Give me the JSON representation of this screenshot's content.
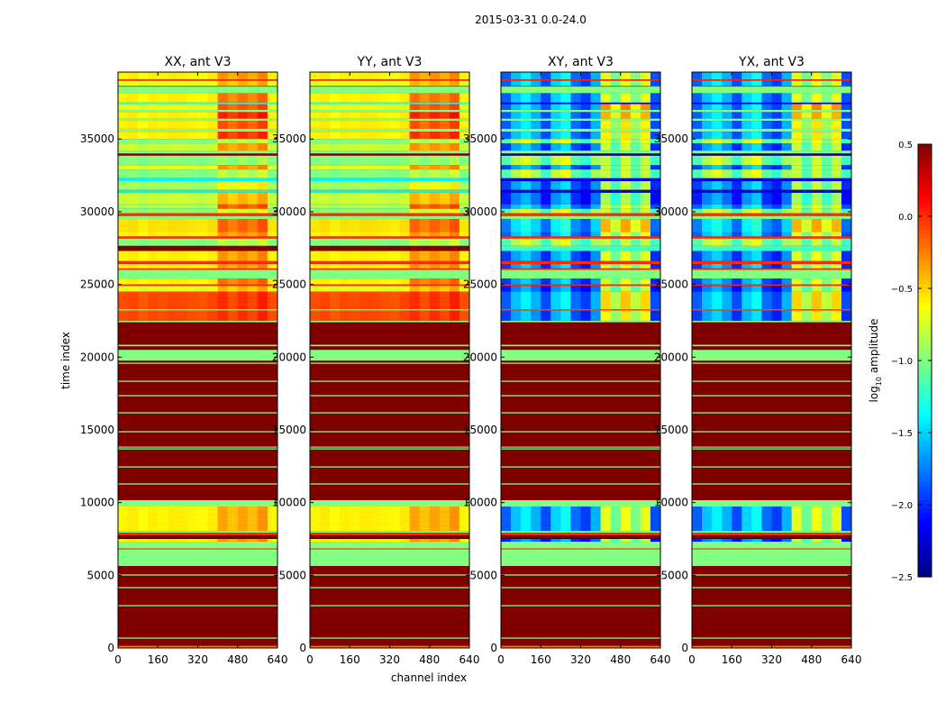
{
  "chart_data": {
    "type": "heatmap",
    "title": "2015-03-31 0.0-24.0",
    "xlabel": "channel index",
    "ylabel": "time index",
    "xlim": [
      0,
      640
    ],
    "ylim": [
      0,
      39600
    ],
    "xticks": [
      "0",
      "160",
      "320",
      "480",
      "640"
    ],
    "xtick_values": [
      0,
      160,
      320,
      480,
      640
    ],
    "yticks": [
      "0",
      "5000",
      "10000",
      "15000",
      "20000",
      "25000",
      "30000",
      "35000"
    ],
    "ytick_values": [
      0,
      5000,
      10000,
      15000,
      20000,
      25000,
      30000,
      35000
    ],
    "colormap": "jet",
    "colorbar": {
      "label_main": "log",
      "label_sub": "10",
      "label_rest": " amplitude",
      "range": [
        -2.5,
        0.5
      ],
      "ticks": [
        "0.5",
        "0.0",
        "−0.5",
        "−1.0",
        "−1.5",
        "−2.0",
        "−2.5"
      ],
      "tick_values": [
        0.5,
        0.0,
        -0.5,
        -1.0,
        -1.5,
        -2.0,
        -2.5
      ]
    },
    "hot_channel_range": [
      400,
      600
    ],
    "flag_value": 0.5,
    "panels": [
      {
        "title": "XX, ant V3",
        "band_set": "copol"
      },
      {
        "title": "YY, ant V3",
        "band_set": "copol"
      },
      {
        "title": "XY, ant V3",
        "band_set": "crosspol"
      },
      {
        "title": "YX, ant V3",
        "band_set": "crosspol"
      }
    ],
    "column_profiles": {
      "copol": [
        0.0,
        0.03,
        -0.03,
        0.02,
        0.0,
        0.03,
        0.02,
        0.0,
        -0.02,
        0.03,
        0.0,
        -0.1,
        0.0,
        -0.08,
        0.05,
        0.0
      ],
      "crosspol": [
        -0.15,
        0.15,
        0.3,
        0.1,
        -0.2,
        0.2,
        0.35,
        -0.1,
        -0.25,
        0.1,
        0.1,
        -0.25,
        0.15,
        -0.2,
        0.1,
        -0.2
      ]
    },
    "band_sets": {
      "copol": [
        [
          39100,
          39600,
          -0.6,
          -0.3
        ],
        [
          39000,
          39100,
          0.0,
          0.0
        ],
        [
          38650,
          39000,
          -0.7,
          -0.4
        ],
        [
          38600,
          38650,
          0.0,
          0.0
        ],
        [
          38150,
          38600,
          -1.0,
          -1.0
        ],
        [
          37500,
          38150,
          -0.6,
          -0.2
        ],
        [
          37400,
          37500,
          -1.3,
          -1.3
        ],
        [
          37000,
          37400,
          -0.7,
          -0.1
        ],
        [
          36850,
          37000,
          -1.0,
          -1.0
        ],
        [
          36400,
          36850,
          -0.6,
          0.05
        ],
        [
          36250,
          36400,
          -1.0,
          -1.0
        ],
        [
          35700,
          36250,
          -0.6,
          -0.1
        ],
        [
          35500,
          35700,
          -1.0,
          -1.0
        ],
        [
          35000,
          35500,
          -0.6,
          0.0
        ],
        [
          34700,
          35000,
          -1.0,
          -0.8
        ],
        [
          34200,
          34700,
          -0.8,
          -0.3
        ],
        [
          34000,
          34200,
          -1.0,
          -1.0
        ],
        [
          33850,
          34000,
          0.5,
          0.5
        ],
        [
          33200,
          33850,
          -1.0,
          -0.9
        ],
        [
          32900,
          33200,
          -0.7,
          -0.3
        ],
        [
          32300,
          32900,
          -1.0,
          -0.8
        ],
        [
          32100,
          32300,
          -1.4,
          -1.4
        ],
        [
          31500,
          32100,
          -0.9,
          -0.6
        ],
        [
          31300,
          31500,
          -1.4,
          -1.4
        ],
        [
          30500,
          31300,
          -0.8,
          -0.4
        ],
        [
          30200,
          30500,
          -0.9,
          -0.1
        ],
        [
          29900,
          30200,
          -1.0,
          -0.7
        ],
        [
          29700,
          29900,
          0.0,
          0.0
        ],
        [
          29500,
          29700,
          -1.0,
          -1.0
        ],
        [
          28600,
          29500,
          -0.55,
          -0.15
        ],
        [
          28300,
          28600,
          -0.6,
          -0.3
        ],
        [
          28150,
          28300,
          0.0,
          0.0
        ],
        [
          27650,
          28150,
          -1.0,
          -0.8
        ],
        [
          27300,
          27650,
          0.5,
          0.5
        ],
        [
          26600,
          27300,
          -0.6,
          -0.3
        ],
        [
          26400,
          26600,
          0.0,
          0.0
        ],
        [
          26100,
          26400,
          -0.6,
          -0.3
        ],
        [
          26000,
          26100,
          0.0,
          0.0
        ],
        [
          25400,
          26000,
          -1.0,
          -1.0
        ],
        [
          25000,
          25400,
          -0.6,
          -0.2
        ],
        [
          24900,
          25000,
          0.0,
          0.0
        ],
        [
          24500,
          24900,
          -0.7,
          -0.4
        ],
        [
          23300,
          24500,
          -0.1,
          0.0
        ],
        [
          23200,
          23300,
          -1.0,
          -1.0
        ],
        [
          22500,
          23200,
          -0.1,
          0.0
        ],
        [
          22400,
          22500,
          -1.0,
          -1.0
        ],
        [
          8050,
          9730,
          -0.6,
          -0.35
        ],
        [
          7310,
          7500,
          -0.6,
          -0.3
        ]
      ],
      "crosspol": [
        [
          39100,
          39600,
          -1.7,
          -0.8
        ],
        [
          39000,
          39100,
          0.0,
          0.0
        ],
        [
          38650,
          39000,
          -1.7,
          -0.8
        ],
        [
          38600,
          38650,
          0.0,
          0.0
        ],
        [
          38150,
          38600,
          -1.0,
          -1.0
        ],
        [
          37500,
          38150,
          -1.7,
          -0.8
        ],
        [
          37400,
          37500,
          -2.2,
          -2.2
        ],
        [
          37000,
          37400,
          -1.7,
          -0.4
        ],
        [
          36850,
          37000,
          -1.0,
          -1.0
        ],
        [
          36400,
          36850,
          -1.7,
          -0.5
        ],
        [
          36250,
          36400,
          -1.0,
          -1.0
        ],
        [
          35700,
          36250,
          -1.7,
          -0.7
        ],
        [
          35500,
          35700,
          -1.0,
          -1.0
        ],
        [
          35000,
          35500,
          -1.7,
          -0.7
        ],
        [
          34700,
          35000,
          -1.0,
          -0.8
        ],
        [
          34200,
          34700,
          -1.8,
          -0.9
        ],
        [
          34000,
          34200,
          -1.0,
          -1.0
        ],
        [
          33850,
          34000,
          -2.5,
          -2.5
        ],
        [
          33200,
          33850,
          -1.0,
          -0.9
        ],
        [
          32900,
          33200,
          -1.8,
          -0.9
        ],
        [
          32300,
          32900,
          -1.0,
          -0.9
        ],
        [
          32100,
          32300,
          -2.2,
          -2.2
        ],
        [
          31500,
          32100,
          -1.8,
          -0.9
        ],
        [
          31300,
          31500,
          -2.2,
          -2.2
        ],
        [
          30500,
          31300,
          -1.9,
          -1.0
        ],
        [
          30200,
          30500,
          -1.7,
          -0.8
        ],
        [
          29900,
          30200,
          -1.0,
          -0.9
        ],
        [
          29700,
          29900,
          0.0,
          0.0
        ],
        [
          29500,
          29700,
          -1.0,
          -1.0
        ],
        [
          28600,
          29500,
          -1.6,
          -0.5
        ],
        [
          28300,
          28600,
          -1.7,
          -0.8
        ],
        [
          28150,
          28300,
          0.0,
          0.0
        ],
        [
          27650,
          28150,
          -1.0,
          -0.9
        ],
        [
          27300,
          27650,
          -1.2,
          -1.2
        ],
        [
          26600,
          27300,
          -1.8,
          -0.8
        ],
        [
          26400,
          26600,
          0.0,
          0.0
        ],
        [
          26100,
          26400,
          -1.8,
          -0.8
        ],
        [
          26000,
          26100,
          0.0,
          0.0
        ],
        [
          25400,
          26000,
          -1.0,
          -1.0
        ],
        [
          25000,
          25400,
          -1.8,
          -0.8
        ],
        [
          24900,
          25000,
          0.0,
          0.0
        ],
        [
          24500,
          24900,
          -1.9,
          -0.9
        ],
        [
          23300,
          24500,
          -1.7,
          -0.6
        ],
        [
          23200,
          23300,
          -0.1,
          -0.1
        ],
        [
          22500,
          23200,
          -1.8,
          -0.7
        ],
        [
          22400,
          22500,
          -1.0,
          -1.0
        ],
        [
          8050,
          9730,
          -1.7,
          -0.8
        ],
        [
          7310,
          7500,
          -1.9,
          -0.9
        ]
      ]
    },
    "shared_bands": [
      [
        20750,
        20850,
        -1.0,
        -1.0
      ],
      [
        19760,
        20500,
        -1.0,
        -1.0
      ],
      [
        19540,
        19620,
        -1.0,
        -1.0
      ],
      [
        18300,
        18380,
        -1.0,
        -1.0
      ],
      [
        17310,
        17390,
        -1.0,
        -1.0
      ],
      [
        16130,
        16210,
        -1.0,
        -1.0
      ],
      [
        14830,
        14910,
        -1.0,
        -1.0
      ],
      [
        13780,
        13850,
        -1.0,
        -1.0
      ],
      [
        13650,
        13730,
        -1.0,
        -1.0
      ],
      [
        12410,
        12490,
        -1.0,
        -1.0
      ],
      [
        11240,
        11320,
        -1.0,
        -1.0
      ],
      [
        9730,
        10160,
        -1.0,
        -1.0
      ],
      [
        7930,
        8050,
        -1.0,
        -1.0
      ],
      [
        7750,
        7930,
        0.0,
        0.0
      ],
      [
        7500,
        7560,
        -2.5,
        -2.5
      ],
      [
        5640,
        7310,
        -1.0,
        -1.0
      ],
      [
        6780,
        6850,
        0.0,
        0.0
      ],
      [
        4980,
        5060,
        -1.0,
        -1.0
      ],
      [
        4110,
        4190,
        -1.0,
        -1.0
      ],
      [
        2870,
        2950,
        -1.0,
        -1.0
      ],
      [
        640,
        720,
        -1.0,
        -1.0
      ],
      [
        0,
        150,
        -0.2,
        -0.2
      ]
    ]
  }
}
